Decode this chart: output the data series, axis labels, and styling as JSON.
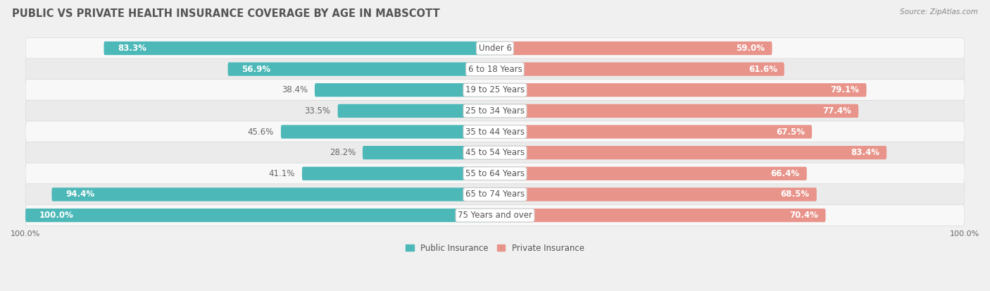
{
  "title": "PUBLIC VS PRIVATE HEALTH INSURANCE COVERAGE BY AGE IN MABSCOTT",
  "source": "Source: ZipAtlas.com",
  "categories": [
    "Under 6",
    "6 to 18 Years",
    "19 to 25 Years",
    "25 to 34 Years",
    "35 to 44 Years",
    "45 to 54 Years",
    "55 to 64 Years",
    "65 to 74 Years",
    "75 Years and over"
  ],
  "public_values": [
    83.3,
    56.9,
    38.4,
    33.5,
    45.6,
    28.2,
    41.1,
    94.4,
    100.0
  ],
  "private_values": [
    59.0,
    61.6,
    79.1,
    77.4,
    67.5,
    83.4,
    66.4,
    68.5,
    70.4
  ],
  "public_color": "#4db8b8",
  "private_color": "#e8948a",
  "public_label": "Public Insurance",
  "private_label": "Private Insurance",
  "background_color": "#f0f0f0",
  "row_bg_light": "#f8f8f8",
  "row_bg_dark": "#ebebeb",
  "row_border_color": "#d8d8d8",
  "title_fontsize": 10.5,
  "source_fontsize": 7.5,
  "value_fontsize": 8.5,
  "category_fontsize": 8.5,
  "legend_fontsize": 8.5,
  "axis_fontsize": 8.0
}
